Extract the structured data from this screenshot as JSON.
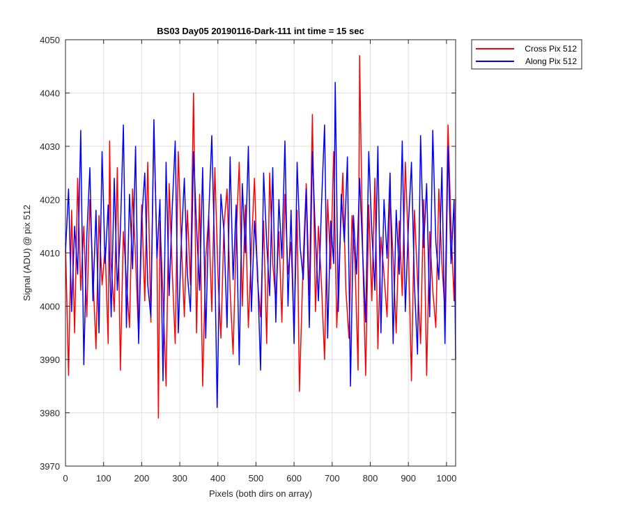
{
  "chart_data": {
    "type": "line",
    "title": "BS03 Day05 20190116-Dark-111 int time = 15 sec",
    "xlabel": "Pixels (both dirs on array)",
    "ylabel": "Signal (ADU) @ pix 512",
    "xlim": [
      0,
      1024
    ],
    "ylim": [
      3970,
      4050
    ],
    "xticks": [
      0,
      100,
      200,
      300,
      400,
      500,
      600,
      700,
      800,
      900,
      1000
    ],
    "yticks": [
      3970,
      3980,
      3990,
      4000,
      4010,
      4020,
      4030,
      4040,
      4050
    ],
    "grid": true,
    "legend_position": "outside-top-right",
    "series": [
      {
        "name": "Cross Pix 512",
        "color": "#ff0000",
        "x": [
          0,
          8,
          16,
          24,
          32,
          40,
          48,
          56,
          64,
          72,
          80,
          88,
          96,
          104,
          112,
          116,
          120,
          128,
          136,
          144,
          152,
          160,
          168,
          176,
          184,
          192,
          200,
          208,
          216,
          224,
          232,
          240,
          244,
          248,
          256,
          264,
          272,
          280,
          288,
          296,
          304,
          312,
          320,
          328,
          336,
          344,
          352,
          360,
          368,
          376,
          384,
          392,
          400,
          408,
          416,
          424,
          432,
          440,
          448,
          456,
          464,
          472,
          480,
          488,
          496,
          504,
          512,
          520,
          528,
          536,
          544,
          552,
          560,
          568,
          576,
          584,
          592,
          600,
          608,
          614,
          624,
          632,
          640,
          648,
          656,
          664,
          672,
          680,
          688,
          696,
          704,
          712,
          720,
          728,
          736,
          744,
          752,
          760,
          768,
          772,
          780,
          788,
          796,
          804,
          812,
          820,
          828,
          836,
          844,
          852,
          860,
          868,
          876,
          884,
          892,
          900,
          908,
          916,
          924,
          932,
          940,
          948,
          956,
          964,
          972,
          980,
          988,
          996,
          1004,
          1012,
          1020,
          1024
        ],
        "values": [
          4012,
          3987,
          4018,
          3995,
          4024,
          4003,
          4015,
          3998,
          4020,
          4006,
          3992,
          4017,
          4004,
          4011,
          3993,
          4031,
          4008,
          3999,
          4026,
          3988,
          4014,
          4005,
          3996,
          4022,
          4009,
          3994,
          4019,
          4001,
          4027,
          3997,
          4034,
          4010,
          3979,
          4016,
          4002,
          3985,
          4023,
          4007,
          3993,
          4029,
          4012,
          3998,
          4018,
          4004,
          4040,
          3995,
          4021,
          3985,
          4009,
          4017,
          3999,
          4026,
          4006,
          3994,
          4015,
          4022,
          4003,
          3991,
          4013,
          4027,
          4000,
          4019,
          3996,
          4011,
          4024,
          4005,
          3998,
          4016,
          3993,
          4025,
          4008,
          4001,
          4014,
          3997,
          4021,
          4006,
          4012,
          3995,
          4018,
          3984,
          4009,
          4023,
          4002,
          4036,
          3999,
          4015,
          4004,
          3990,
          4020,
          4007,
          4029,
          3996,
          4011,
          4025,
          4003,
          3994,
          4017,
          4008,
          3988,
          4047,
          4010,
          3987,
          4019,
          4001,
          4024,
          3992,
          4013,
          4006,
          3998,
          4021,
          4009,
          3995,
          4016,
          4002,
          4027,
          4011,
          3986,
          4018,
          4005,
          3993,
          4020,
          3987,
          4014,
          4003,
          3996,
          4022,
          4008,
          3999,
          4034,
          4015,
          4001,
          4020
        ]
      },
      {
        "name": "Along Pix 512",
        "color": "#0000ff",
        "x": [
          0,
          8,
          16,
          24,
          32,
          40,
          48,
          56,
          64,
          72,
          80,
          88,
          96,
          104,
          112,
          120,
          128,
          136,
          144,
          152,
          160,
          168,
          176,
          184,
          192,
          200,
          208,
          216,
          224,
          232,
          240,
          248,
          256,
          264,
          272,
          280,
          288,
          296,
          304,
          312,
          320,
          328,
          336,
          344,
          352,
          360,
          368,
          376,
          384,
          392,
          398,
          408,
          416,
          424,
          432,
          440,
          448,
          456,
          464,
          472,
          480,
          488,
          496,
          504,
          512,
          520,
          528,
          536,
          544,
          552,
          560,
          568,
          576,
          584,
          592,
          600,
          608,
          616,
          624,
          632,
          640,
          648,
          656,
          664,
          672,
          680,
          688,
          696,
          704,
          708,
          716,
          724,
          732,
          740,
          748,
          756,
          764,
          772,
          780,
          788,
          796,
          804,
          812,
          820,
          828,
          836,
          844,
          852,
          860,
          868,
          876,
          884,
          892,
          900,
          908,
          916,
          924,
          932,
          940,
          948,
          956,
          964,
          972,
          980,
          988,
          996,
          1004,
          1012,
          1020,
          1024
        ],
        "values": [
          4010,
          4022,
          3999,
          4015,
          4006,
          4033,
          3989,
          4013,
          4026,
          4001,
          4018,
          3995,
          4029,
          4008,
          4019,
          3998,
          4024,
          4003,
          4014,
          4034,
          3996,
          4021,
          4007,
          4030,
          3993,
          4016,
          4025,
          4004,
          3998,
          4035,
          4009,
          4020,
          3986,
          4027,
          4002,
          4018,
          4031,
          3995,
          4012,
          4024,
          4006,
          3999,
          4029,
          4015,
          4003,
          4026,
          3994,
          4017,
          4032,
          4008,
          3981,
          4021,
          4014,
          3996,
          4028,
          4005,
          4019,
          3989,
          4023,
          4010,
          4030,
          3999,
          4016,
          4007,
          3988,
          4025,
          4012,
          4002,
          4026,
          3997,
          4020,
          4009,
          4031,
          4000,
          4018,
          3993,
          4027,
          4011,
          4005,
          4022,
          3996,
          4029,
          4013,
          4001,
          4019,
          4034,
          3994,
          4016,
          4008,
          4042,
          3999,
          4021,
          4012,
          4028,
          3985,
          4017,
          4006,
          4024,
          4010,
          3997,
          4029,
          4014,
          4003,
          4030,
          3995,
          4020,
          4009,
          4025,
          3993,
          4018,
          4006,
          4031,
          3999,
          4015,
          4027,
          4004,
          3991,
          4032,
          4011,
          4023,
          3998,
          4033,
          4012,
          4005,
          4026,
          3993,
          4030,
          4008,
          4020,
          3990
        ]
      }
    ]
  }
}
